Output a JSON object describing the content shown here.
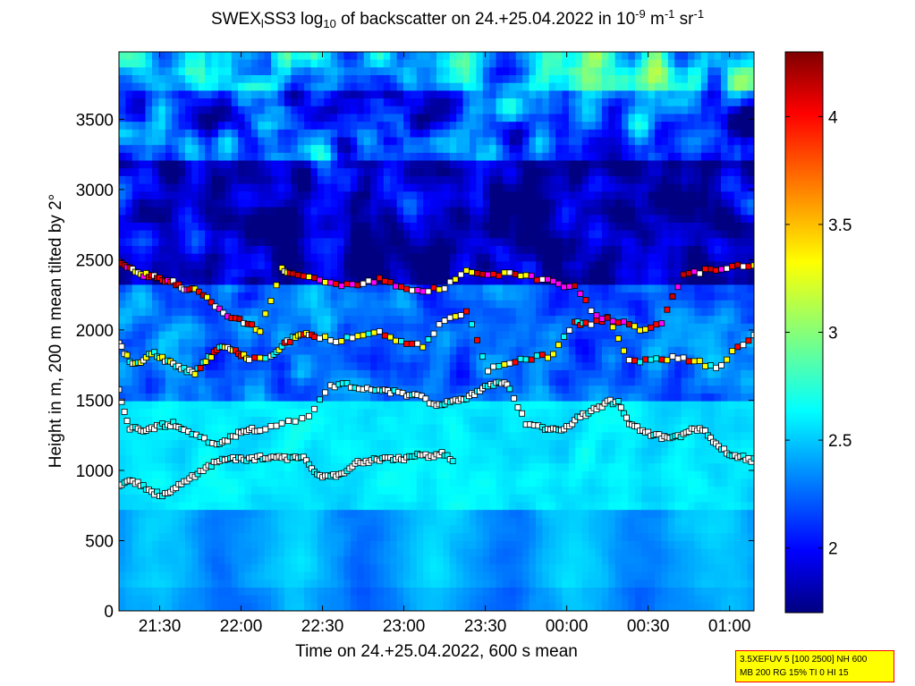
{
  "chart_data": {
    "type": "heatmap",
    "title_parts": {
      "pre": "SWEX",
      "sub_l": "l",
      "mid": "SS3 log",
      "sub_10": "10",
      "post": " of backscatter on 24.+25.04.2022 in 10",
      "exp1": "-9",
      "unit1": " m",
      "exp2": "-1",
      "unit2": " sr",
      "exp3": "-1"
    },
    "xlabel": "Time on 24.+25.04.2022, 600 s mean",
    "ylabel": "Height in m, 200 m mean tilted by 2°",
    "x_range": [
      "21:15",
      "01:09"
    ],
    "x_tick_labels": [
      "21:30",
      "22:00",
      "22:30",
      "23:00",
      "23:30",
      "00:00",
      "00:30",
      "01:00"
    ],
    "x_tick_minutes": [
      15,
      45,
      75,
      105,
      135,
      165,
      195,
      225
    ],
    "ylim": [
      0,
      3980
    ],
    "y_ticks": [
      0,
      500,
      1000,
      1500,
      2000,
      2500,
      3000,
      3500
    ],
    "colorbar": {
      "range": [
        1.7,
        4.3
      ],
      "ticks": [
        2,
        2.5,
        3,
        3.5,
        4
      ],
      "tick_labels": [
        "2",
        "2.5",
        "3",
        "3.5",
        "4"
      ],
      "colormap": "jet"
    },
    "layers": [
      {
        "name": "cloud layer 1",
        "marker_color": "white",
        "points": [
          [
            0,
            880
          ],
          [
            4,
            920
          ],
          [
            8,
            900
          ],
          [
            12,
            850
          ],
          [
            16,
            820
          ],
          [
            20,
            860
          ],
          [
            24,
            930
          ],
          [
            28,
            960
          ],
          [
            32,
            1020
          ],
          [
            36,
            1060
          ],
          [
            40,
            1080
          ],
          [
            44,
            1090
          ],
          [
            48,
            1080
          ],
          [
            52,
            1090
          ],
          [
            56,
            1100
          ],
          [
            60,
            1090
          ],
          [
            64,
            1080
          ],
          [
            68,
            1100
          ],
          [
            72,
            980
          ],
          [
            76,
            960
          ],
          [
            80,
            970
          ],
          [
            84,
            990
          ],
          [
            88,
            1060
          ],
          [
            92,
            1070
          ],
          [
            96,
            1080
          ],
          [
            100,
            1090
          ],
          [
            104,
            1080
          ],
          [
            108,
            1100
          ],
          [
            112,
            1110
          ],
          [
            116,
            1100
          ],
          [
            120,
            1120
          ],
          [
            124,
            1060
          ]
        ]
      },
      {
        "name": "cloud layer 2",
        "marker_color": "white",
        "points": [
          [
            0,
            1560
          ],
          [
            4,
            1300
          ],
          [
            8,
            1290
          ],
          [
            12,
            1300
          ],
          [
            16,
            1320
          ],
          [
            20,
            1330
          ],
          [
            24,
            1280
          ],
          [
            30,
            1240
          ],
          [
            36,
            1180
          ],
          [
            40,
            1220
          ],
          [
            44,
            1260
          ],
          [
            48,
            1300
          ],
          [
            52,
            1280
          ],
          [
            60,
            1340
          ],
          [
            70,
            1380
          ],
          [
            78,
            1600
          ],
          [
            84,
            1610
          ],
          [
            90,
            1590
          ],
          [
            96,
            1580
          ],
          [
            100,
            1560
          ],
          [
            106,
            1540
          ],
          [
            110,
            1530
          ],
          [
            116,
            1470
          ],
          [
            120,
            1480
          ],
          [
            124,
            1500
          ],
          [
            128,
            1520
          ],
          [
            132,
            1560
          ],
          [
            136,
            1600
          ],
          [
            140,
            1630
          ],
          [
            144,
            1590
          ],
          [
            150,
            1330
          ],
          [
            156,
            1300
          ],
          [
            160,
            1290
          ],
          [
            164,
            1300
          ],
          [
            168,
            1360
          ],
          [
            172,
            1400
          ],
          [
            176,
            1440
          ],
          [
            180,
            1490
          ],
          [
            184,
            1480
          ],
          [
            188,
            1330
          ],
          [
            192,
            1290
          ],
          [
            196,
            1250
          ],
          [
            200,
            1240
          ],
          [
            204,
            1230
          ],
          [
            208,
            1250
          ],
          [
            212,
            1300
          ],
          [
            216,
            1270
          ],
          [
            220,
            1180
          ],
          [
            224,
            1130
          ],
          [
            228,
            1100
          ],
          [
            232,
            1080
          ],
          [
            236,
            1060
          ],
          [
            240,
            1020
          ],
          [
            244,
            980
          ]
        ]
      },
      {
        "name": "cloud layer 3",
        "marker_color": "mixed",
        "points": [
          [
            0,
            1900
          ],
          [
            4,
            1780
          ],
          [
            8,
            1760
          ],
          [
            12,
            1840
          ],
          [
            16,
            1800
          ],
          [
            20,
            1760
          ],
          [
            24,
            1720
          ],
          [
            28,
            1700
          ],
          [
            32,
            1780
          ],
          [
            36,
            1860
          ],
          [
            40,
            1880
          ],
          [
            44,
            1840
          ],
          [
            48,
            1780
          ],
          [
            56,
            1820
          ],
          [
            60,
            1880
          ],
          [
            64,
            1940
          ],
          [
            68,
            1980
          ],
          [
            72,
            1960
          ],
          [
            80,
            1920
          ],
          [
            88,
            1960
          ],
          [
            96,
            1980
          ],
          [
            104,
            1920
          ],
          [
            112,
            1880
          ],
          [
            120,
            2080
          ],
          [
            128,
            2130
          ],
          [
            136,
            1720
          ],
          [
            144,
            1760
          ],
          [
            152,
            1800
          ],
          [
            160,
            1820
          ],
          [
            168,
            2060
          ],
          [
            172,
            2040
          ],
          [
            180,
            2080
          ],
          [
            188,
            1780
          ],
          [
            196,
            1780
          ],
          [
            204,
            1800
          ],
          [
            212,
            1780
          ],
          [
            220,
            1720
          ],
          [
            228,
            1880
          ],
          [
            236,
            1980
          ],
          [
            240,
            2000
          ],
          [
            244,
            2050
          ],
          [
            248,
            2100
          ],
          [
            252,
            2140
          ]
        ]
      },
      {
        "name": "cloud layer 4",
        "marker_color": "red",
        "points": [
          [
            0,
            2490
          ],
          [
            4,
            2430
          ],
          [
            8,
            2400
          ],
          [
            12,
            2380
          ],
          [
            16,
            2360
          ],
          [
            20,
            2340
          ],
          [
            24,
            2300
          ],
          [
            28,
            2280
          ],
          [
            34,
            2200
          ],
          [
            40,
            2100
          ],
          [
            46,
            2060
          ],
          [
            52,
            2000
          ],
          [
            60,
            2440
          ],
          [
            64,
            2400
          ],
          [
            72,
            2380
          ],
          [
            80,
            2320
          ],
          [
            88,
            2320
          ],
          [
            96,
            2360
          ],
          [
            104,
            2300
          ],
          [
            112,
            2280
          ],
          [
            120,
            2300
          ],
          [
            128,
            2420
          ],
          [
            136,
            2400
          ],
          [
            144,
            2400
          ],
          [
            152,
            2380
          ],
          [
            160,
            2340
          ],
          [
            168,
            2300
          ],
          [
            176,
            2100
          ],
          [
            184,
            2060
          ],
          [
            192,
            2000
          ],
          [
            200,
            2060
          ],
          [
            208,
            2400
          ],
          [
            216,
            2420
          ],
          [
            224,
            2440
          ],
          [
            232,
            2460
          ],
          [
            240,
            2400
          ],
          [
            248,
            2380
          ],
          [
            252,
            2360
          ]
        ]
      }
    ]
  },
  "infobox": {
    "line1": "3.5XEFUV 5 [100 2500] NH 600",
    "line2": "MB 200 RG 15% TI 0 HI 15"
  }
}
